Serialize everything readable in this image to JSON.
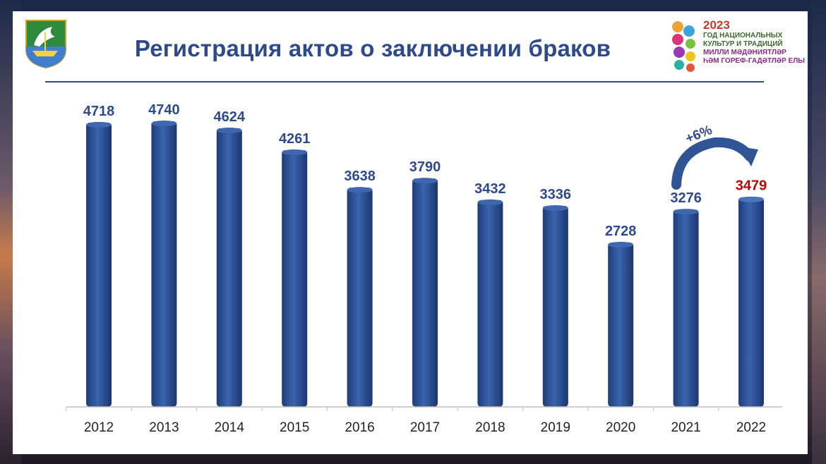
{
  "header": {
    "title": "Регистрация актов о заключении браков"
  },
  "year_logo": {
    "year": "2023",
    "line1": "ГОД НАЦИОНАЛЬНЫХ",
    "line2": "КУЛЬТУР И ТРАДИЦИЙ",
    "line3": "МИЛЛИ МӘДӘНИЯТЛӘР",
    "line4": "ҺӘМ ГОРЕФ-ГАДӘТЛӘР ЕЛЫ"
  },
  "colors": {
    "bar": "#2f5597",
    "bar_highlight": "#4a75bd",
    "label": "#2d4a8a",
    "label_highlight": "#c00000",
    "title": "#2d4a8a"
  },
  "chart_data": {
    "type": "bar",
    "categories": [
      "2012",
      "2013",
      "2014",
      "2015",
      "2016",
      "2017",
      "2018",
      "2019",
      "2020",
      "2021",
      "2022"
    ],
    "values": [
      4718,
      4740,
      4624,
      4261,
      3638,
      3790,
      3432,
      3336,
      2728,
      3276,
      3479
    ],
    "data_labels": [
      "4718",
      "4740",
      "4624",
      "4261",
      "3638",
      "3790",
      "3432",
      "3336",
      "2728",
      "3276",
      "3479"
    ],
    "highlighted_category": "2022",
    "title": "Регистрация актов о заключении браков",
    "xlabel": "",
    "ylabel": "",
    "ylim": [
      0,
      4800
    ],
    "grid": false,
    "legend": "none",
    "annotation": {
      "text": "+6%",
      "from": "2021",
      "to": "2022"
    }
  }
}
